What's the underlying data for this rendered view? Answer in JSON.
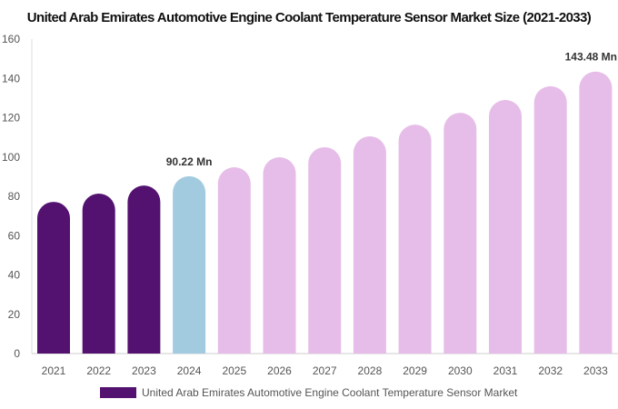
{
  "chart_data": {
    "type": "bar",
    "title": "United Arab Emirates Automotive Engine Coolant Temperature Sensor Market Size (2021-2033)",
    "categories": [
      "2021",
      "2022",
      "2023",
      "2024",
      "2025",
      "2026",
      "2027",
      "2028",
      "2029",
      "2030",
      "2031",
      "2032",
      "2033"
    ],
    "series": [
      {
        "name": "United Arab Emirates Automotive Engine Coolant Temperature Sensor Market",
        "values": [
          77.2,
          81.4,
          85.5,
          90.22,
          94.8,
          99.9,
          105.0,
          110.5,
          116.5,
          122.5,
          129.0,
          136.0,
          143.48
        ]
      }
    ],
    "data_labels": {
      "3": "90.22 Mn",
      "12": "143.48 Mn"
    },
    "ylim": [
      0,
      160
    ],
    "yticks": [
      0,
      20,
      40,
      60,
      80,
      100,
      120,
      140,
      160
    ],
    "grid": false,
    "legend": "bottom",
    "colors": {
      "historical": "#541270",
      "current": "#a3cbe0",
      "forecast": "#e6bde8"
    }
  }
}
